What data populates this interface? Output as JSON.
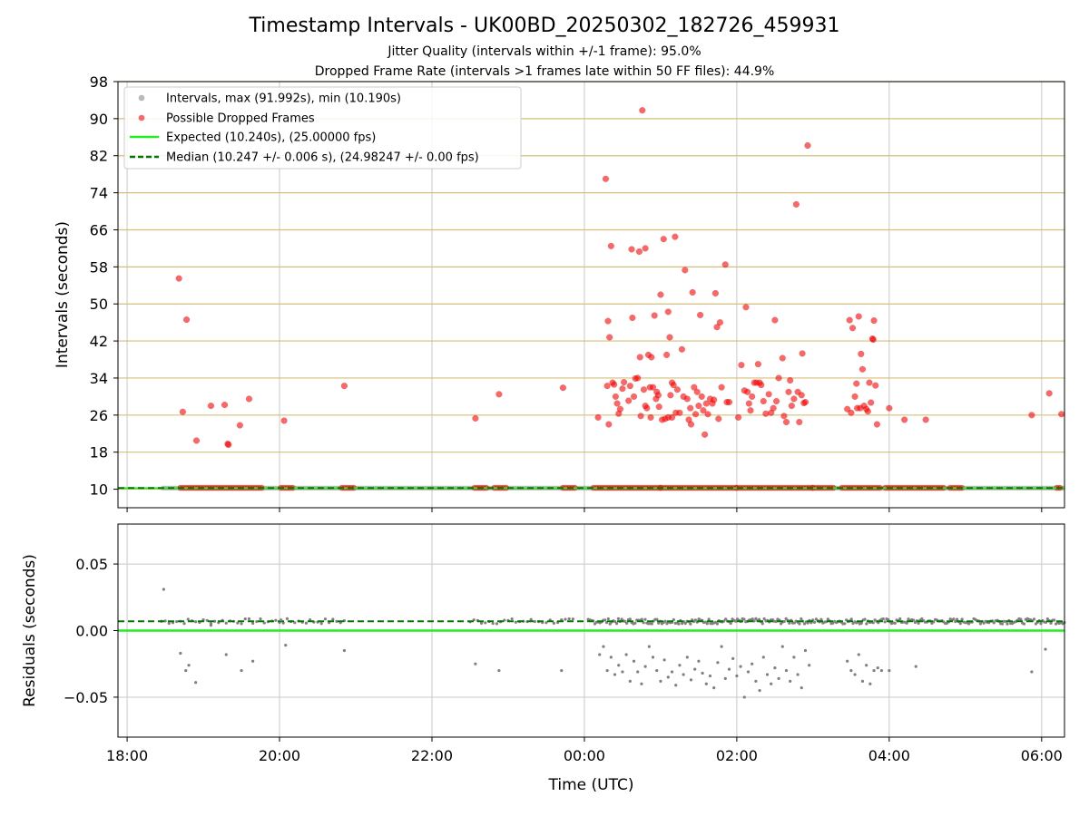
{
  "title": "Timestamp Intervals - UK00BD_20250302_182726_459931",
  "subtitle_jitter": "Jitter Quality (intervals within +/-1 frame): 95.0%",
  "subtitle_dropped": "Dropped Frame Rate (intervals >1 frames late within 50 FF files): 44.9%",
  "colors": {
    "intervals": "#808080",
    "dropped": "#ff0000",
    "expected": "#22ee22",
    "median": "#007700",
    "gold_grid": "#d4bf7a",
    "grid": "#c8c8c8"
  },
  "chart_data": [
    {
      "type": "scatter",
      "name": "intervals",
      "xlabel": "",
      "ylabel": "Intervals (seconds)",
      "ylim": [
        6,
        98
      ],
      "yticks": [
        10,
        18,
        26,
        34,
        42,
        50,
        58,
        66,
        74,
        82,
        90,
        98
      ],
      "yticklabels": [
        "10",
        "18",
        "26",
        "34",
        "42",
        "50",
        "58",
        "66",
        "74",
        "82",
        "90",
        "98"
      ],
      "xlim_hours": [
        17.88,
        30.3
      ],
      "xtick_hours": [
        18,
        20,
        22,
        24,
        26,
        28,
        30
      ],
      "legend_position": "top-left",
      "legend": [
        "Intervals, max (91.992s), min (10.190s)",
        "Possible Dropped Frames",
        "Expected (10.240s), (25.00000 fps)",
        "Median (10.247 +/- 0.006 s), (24.98247 +/- 0.00 fps)"
      ],
      "expected_interval": 10.24,
      "median_interval": 10.247,
      "normal_interval_span_hours": [
        18.45,
        30.3
      ],
      "dropped_points": [
        [
          18.68,
          55.5
        ],
        [
          18.73,
          26.7
        ],
        [
          18.78,
          46.6
        ],
        [
          18.91,
          20.5
        ],
        [
          19.1,
          28
        ],
        [
          19.28,
          28.2
        ],
        [
          19.32,
          19.8
        ],
        [
          19.33,
          19.6
        ],
        [
          19.48,
          23.8
        ],
        [
          19.6,
          29.5
        ],
        [
          20.06,
          24.8
        ],
        [
          20.85,
          32.3
        ],
        [
          22.57,
          25.3
        ],
        [
          22.88,
          30.5
        ],
        [
          23.72,
          31.9
        ],
        [
          24.18,
          25.5
        ],
        [
          24.28,
          77
        ],
        [
          24.3,
          32.3
        ],
        [
          24.31,
          46.3
        ],
        [
          24.32,
          24
        ],
        [
          24.33,
          42.8
        ],
        [
          24.35,
          62.5
        ],
        [
          24.37,
          33
        ],
        [
          24.39,
          32.6
        ],
        [
          24.41,
          30
        ],
        [
          24.43,
          28.5
        ],
        [
          24.45,
          26.3
        ],
        [
          24.47,
          27.3
        ],
        [
          24.5,
          31.7
        ],
        [
          24.52,
          33.1
        ],
        [
          24.58,
          29.1
        ],
        [
          24.6,
          32.3
        ],
        [
          24.62,
          61.8
        ],
        [
          24.63,
          47
        ],
        [
          24.65,
          30
        ],
        [
          24.67,
          33.9
        ],
        [
          24.7,
          34
        ],
        [
          24.72,
          61.3
        ],
        [
          24.73,
          38.5
        ],
        [
          24.74,
          25.8
        ],
        [
          24.76,
          91.8
        ],
        [
          24.78,
          31.5
        ],
        [
          24.8,
          62
        ],
        [
          24.8,
          28
        ],
        [
          24.82,
          27.5
        ],
        [
          24.84,
          39
        ],
        [
          24.86,
          32
        ],
        [
          24.87,
          25.5
        ],
        [
          24.88,
          38.5
        ],
        [
          24.9,
          32
        ],
        [
          24.92,
          47.5
        ],
        [
          24.94,
          29.5
        ],
        [
          24.95,
          31
        ],
        [
          24.97,
          30.3
        ],
        [
          24.98,
          27.8
        ],
        [
          25.0,
          52
        ],
        [
          25.02,
          25
        ],
        [
          25.04,
          64
        ],
        [
          25.06,
          25.2
        ],
        [
          25.08,
          39
        ],
        [
          25.1,
          48.3
        ],
        [
          25.1,
          25.5
        ],
        [
          25.12,
          42.8
        ],
        [
          25.13,
          30.3
        ],
        [
          25.15,
          33
        ],
        [
          25.15,
          25.5
        ],
        [
          25.17,
          32.5
        ],
        [
          25.19,
          64.5
        ],
        [
          25.2,
          26.5
        ],
        [
          25.22,
          31.5
        ],
        [
          25.25,
          26.5
        ],
        [
          25.28,
          40.2
        ],
        [
          25.3,
          30
        ],
        [
          25.32,
          57.3
        ],
        [
          25.35,
          29.5
        ],
        [
          25.37,
          25
        ],
        [
          25.39,
          27.5
        ],
        [
          25.4,
          24
        ],
        [
          25.42,
          52.5
        ],
        [
          25.44,
          32
        ],
        [
          25.46,
          26.2
        ],
        [
          25.48,
          31
        ],
        [
          25.5,
          28
        ],
        [
          25.52,
          47.6
        ],
        [
          25.54,
          30
        ],
        [
          25.56,
          27
        ],
        [
          25.58,
          21.8
        ],
        [
          25.6,
          28.5
        ],
        [
          25.62,
          26.2
        ],
        [
          25.65,
          29.5
        ],
        [
          25.68,
          28.5
        ],
        [
          25.7,
          29.3
        ],
        [
          25.72,
          52.3
        ],
        [
          25.74,
          45
        ],
        [
          25.76,
          25.2
        ],
        [
          25.78,
          46
        ],
        [
          25.8,
          32
        ],
        [
          25.85,
          58.5
        ],
        [
          25.87,
          28.8
        ],
        [
          25.9,
          28.8
        ],
        [
          26.02,
          25.5
        ],
        [
          26.06,
          36.8
        ],
        [
          26.1,
          31.3
        ],
        [
          26.12,
          49.3
        ],
        [
          26.14,
          31
        ],
        [
          26.16,
          28.5
        ],
        [
          26.18,
          27
        ],
        [
          26.2,
          30
        ],
        [
          26.23,
          33
        ],
        [
          26.26,
          33
        ],
        [
          26.28,
          37
        ],
        [
          26.3,
          33
        ],
        [
          26.32,
          32.5
        ],
        [
          26.35,
          29
        ],
        [
          26.38,
          26.3
        ],
        [
          26.42,
          30.5
        ],
        [
          26.45,
          26.5
        ],
        [
          26.48,
          27.5
        ],
        [
          26.5,
          46.5
        ],
        [
          26.52,
          29
        ],
        [
          26.55,
          34
        ],
        [
          26.6,
          38.3
        ],
        [
          26.62,
          25.8
        ],
        [
          26.65,
          24.5
        ],
        [
          26.68,
          31
        ],
        [
          26.7,
          33.5
        ],
        [
          26.72,
          28
        ],
        [
          26.75,
          29.5
        ],
        [
          26.78,
          71.5
        ],
        [
          26.8,
          31
        ],
        [
          26.82,
          24.5
        ],
        [
          26.85,
          30.3
        ],
        [
          26.86,
          39.3
        ],
        [
          26.88,
          28.6
        ],
        [
          26.9,
          28.8
        ],
        [
          26.93,
          84.2
        ],
        [
          27.45,
          27.3
        ],
        [
          27.48,
          46.5
        ],
        [
          27.5,
          26.5
        ],
        [
          27.52,
          44.8
        ],
        [
          27.55,
          30
        ],
        [
          27.57,
          32.8
        ],
        [
          27.58,
          27.5
        ],
        [
          27.6,
          47.3
        ],
        [
          27.62,
          27.5
        ],
        [
          27.63,
          39.2
        ],
        [
          27.65,
          35.9
        ],
        [
          27.67,
          28
        ],
        [
          27.7,
          27.3
        ],
        [
          27.72,
          26.8
        ],
        [
          27.74,
          33
        ],
        [
          27.76,
          28.7
        ],
        [
          27.78,
          42.5
        ],
        [
          27.79,
          42.3
        ],
        [
          27.8,
          46.4
        ],
        [
          27.82,
          32.4
        ],
        [
          27.84,
          24
        ],
        [
          28.0,
          27.5
        ],
        [
          28.2,
          25
        ],
        [
          28.48,
          25
        ],
        [
          29.87,
          26
        ],
        [
          30.1,
          30.7
        ],
        [
          30.26,
          26.2
        ]
      ],
      "dropped_at_baseline_segments_hours": [
        [
          18.7,
          19.78
        ],
        [
          20.02,
          20.18
        ],
        [
          20.82,
          21.0
        ],
        [
          22.56,
          22.72
        ],
        [
          22.82,
          23.0
        ],
        [
          23.72,
          23.9
        ],
        [
          24.12,
          25.0
        ],
        [
          25.0,
          26.0
        ],
        [
          26.0,
          27.0
        ],
        [
          27.0,
          27.3
        ],
        [
          27.38,
          27.9
        ],
        [
          27.95,
          28.72
        ],
        [
          28.8,
          28.98
        ],
        [
          30.2,
          30.5
        ],
        [
          30.75,
          30.98
        ]
      ]
    },
    {
      "type": "scatter",
      "name": "residuals",
      "xlabel": "Time (UTC)",
      "ylabel": "Residuals (seconds)",
      "ylim": [
        -0.08,
        0.08
      ],
      "yticks": [
        0.05,
        0.0,
        -0.05
      ],
      "yticklabels": [
        "0.05",
        "0.00",
        "−0.05"
      ],
      "xlim_hours": [
        17.88,
        30.3
      ],
      "xtick_hours": [
        18,
        20,
        22,
        24,
        26,
        28,
        30
      ],
      "xticklabels": [
        "18:00",
        "20:00",
        "22:00",
        "00:00",
        "02:00",
        "04:00",
        "06:00"
      ],
      "expected_residual": 0.0,
      "median_residual": 0.007,
      "outlier_points": [
        [
          18.48,
          0.031
        ],
        [
          18.7,
          -0.017
        ],
        [
          18.77,
          -0.03
        ],
        [
          18.81,
          -0.026
        ],
        [
          18.9,
          -0.039
        ],
        [
          19.1,
          0.004
        ],
        [
          19.3,
          -0.018
        ],
        [
          19.5,
          -0.03
        ],
        [
          19.65,
          -0.023
        ],
        [
          20.02,
          0.008
        ],
        [
          20.08,
          -0.011
        ],
        [
          20.85,
          -0.015
        ],
        [
          22.57,
          -0.025
        ],
        [
          22.88,
          -0.03
        ],
        [
          23.7,
          -0.03
        ],
        [
          24.2,
          -0.018
        ],
        [
          24.25,
          -0.012
        ],
        [
          24.3,
          -0.03
        ],
        [
          24.35,
          -0.02
        ],
        [
          24.4,
          -0.033
        ],
        [
          24.45,
          -0.026
        ],
        [
          24.5,
          -0.031
        ],
        [
          24.55,
          -0.018
        ],
        [
          24.6,
          -0.038
        ],
        [
          24.65,
          -0.023
        ],
        [
          24.7,
          -0.031
        ],
        [
          24.75,
          -0.04
        ],
        [
          24.8,
          -0.027
        ],
        [
          24.85,
          -0.012
        ],
        [
          24.9,
          -0.02
        ],
        [
          24.95,
          -0.03
        ],
        [
          25.0,
          -0.038
        ],
        [
          25.05,
          -0.022
        ],
        [
          25.1,
          -0.035
        ],
        [
          25.15,
          -0.031
        ],
        [
          25.2,
          -0.041
        ],
        [
          25.25,
          -0.026
        ],
        [
          25.3,
          -0.033
        ],
        [
          25.35,
          -0.02
        ],
        [
          25.4,
          -0.037
        ],
        [
          25.45,
          -0.029
        ],
        [
          25.5,
          -0.023
        ],
        [
          25.55,
          -0.032
        ],
        [
          25.6,
          -0.04
        ],
        [
          25.65,
          -0.034
        ],
        [
          25.7,
          -0.043
        ],
        [
          25.75,
          -0.024
        ],
        [
          25.8,
          -0.012
        ],
        [
          25.85,
          -0.036
        ],
        [
          25.9,
          -0.029
        ],
        [
          25.95,
          -0.021
        ],
        [
          26.0,
          -0.034
        ],
        [
          26.05,
          -0.027
        ],
        [
          26.1,
          -0.05
        ],
        [
          26.15,
          -0.031
        ],
        [
          26.2,
          -0.025
        ],
        [
          26.25,
          -0.038
        ],
        [
          26.3,
          -0.045
        ],
        [
          26.35,
          -0.02
        ],
        [
          26.4,
          -0.033
        ],
        [
          26.45,
          -0.04
        ],
        [
          26.5,
          -0.028
        ],
        [
          26.55,
          -0.036
        ],
        [
          26.6,
          -0.012
        ],
        [
          26.65,
          -0.03
        ],
        [
          26.7,
          -0.038
        ],
        [
          26.75,
          -0.02
        ],
        [
          26.8,
          -0.033
        ],
        [
          26.85,
          -0.043
        ],
        [
          26.9,
          -0.015
        ],
        [
          26.95,
          -0.026
        ],
        [
          27.45,
          -0.023
        ],
        [
          27.5,
          -0.03
        ],
        [
          27.55,
          -0.033
        ],
        [
          27.6,
          -0.018
        ],
        [
          27.65,
          -0.038
        ],
        [
          27.7,
          -0.026
        ],
        [
          27.75,
          -0.04
        ],
        [
          27.8,
          -0.03
        ],
        [
          27.85,
          -0.028
        ],
        [
          27.9,
          -0.03
        ],
        [
          28.0,
          -0.03
        ],
        [
          28.35,
          -0.027
        ],
        [
          29.87,
          -0.031
        ],
        [
          30.05,
          -0.014
        ]
      ]
    }
  ]
}
